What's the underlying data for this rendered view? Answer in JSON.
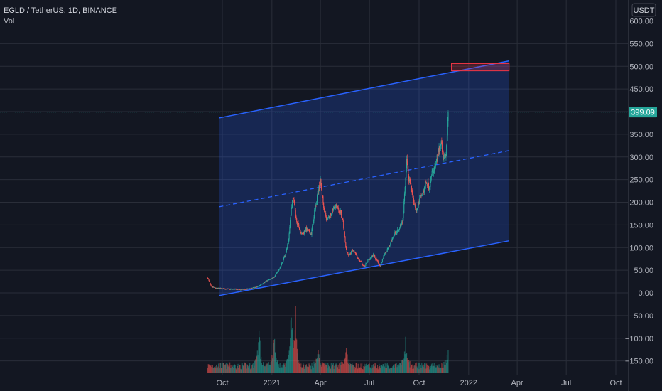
{
  "header": {
    "symbol": "EGLD / TetherUS, 1D, BINANCE",
    "indicator": "Vol"
  },
  "currency_button": "USDT",
  "colors": {
    "background": "#131722",
    "grid": "#2a2e39",
    "up": "#26a69a",
    "down": "#ef5350",
    "channel_line": "#2962ff",
    "channel_fill": "#2962ff",
    "current_price": "#26a69a",
    "target_box": "#f23645"
  },
  "current_price_label": "399.09",
  "chart_data": {
    "type": "candlestick",
    "title": "EGLD / TetherUS, 1D, BINANCE",
    "y_axis": {
      "ticks": [
        "600.00",
        "550.00",
        "500.00",
        "450.00",
        "400.00",
        "350.00",
        "300.00",
        "250.00",
        "200.00",
        "150.00",
        "100.00",
        "50.00",
        "0.00",
        "−50.00",
        "−100.00",
        "−150.00"
      ],
      "values": [
        600,
        550,
        500,
        450,
        400,
        350,
        300,
        250,
        200,
        150,
        100,
        50,
        0,
        -50,
        -100,
        -150
      ],
      "range": [
        -175,
        630
      ]
    },
    "x_axis": {
      "ticks": [
        "Oct",
        "2021",
        "Apr",
        "Jul",
        "Oct",
        "2022",
        "Apr",
        "Jul",
        "Oct"
      ],
      "dates": [
        "2020-10-01",
        "2021-01-01",
        "2021-04-01",
        "2021-07-01",
        "2021-10-01",
        "2022-01-01",
        "2022-04-01",
        "2022-07-01",
        "2022-10-01"
      ]
    },
    "price_path": [
      [
        "2020-09-04",
        33
      ],
      [
        "2020-09-10",
        14
      ],
      [
        "2020-09-20",
        10
      ],
      [
        "2020-10-05",
        9
      ],
      [
        "2020-10-20",
        8
      ],
      [
        "2020-11-05",
        7
      ],
      [
        "2020-11-20",
        9
      ],
      [
        "2020-12-05",
        13
      ],
      [
        "2020-12-15",
        21
      ],
      [
        "2020-12-25",
        28
      ],
      [
        "2021-01-05",
        35
      ],
      [
        "2021-01-15",
        52
      ],
      [
        "2021-01-25",
        82
      ],
      [
        "2021-02-01",
        120
      ],
      [
        "2021-02-06",
        190
      ],
      [
        "2021-02-10",
        212
      ],
      [
        "2021-02-15",
        160
      ],
      [
        "2021-02-20",
        145
      ],
      [
        "2021-02-25",
        128
      ],
      [
        "2021-03-05",
        140
      ],
      [
        "2021-03-15",
        130
      ],
      [
        "2021-03-20",
        172
      ],
      [
        "2021-03-28",
        228
      ],
      [
        "2021-04-01",
        244
      ],
      [
        "2021-04-06",
        200
      ],
      [
        "2021-04-12",
        158
      ],
      [
        "2021-04-20",
        172
      ],
      [
        "2021-04-28",
        193
      ],
      [
        "2021-05-08",
        178
      ],
      [
        "2021-05-13",
        155
      ],
      [
        "2021-05-18",
        100
      ],
      [
        "2021-05-23",
        82
      ],
      [
        "2021-06-01",
        97
      ],
      [
        "2021-06-10",
        74
      ],
      [
        "2021-06-22",
        58
      ],
      [
        "2021-06-28",
        72
      ],
      [
        "2021-07-08",
        84
      ],
      [
        "2021-07-15",
        70
      ],
      [
        "2021-07-21",
        60
      ],
      [
        "2021-07-28",
        84
      ],
      [
        "2021-08-05",
        98
      ],
      [
        "2021-08-15",
        128
      ],
      [
        "2021-08-25",
        143
      ],
      [
        "2021-09-01",
        162
      ],
      [
        "2021-09-05",
        232
      ],
      [
        "2021-09-08",
        290
      ],
      [
        "2021-09-12",
        250
      ],
      [
        "2021-09-20",
        210
      ],
      [
        "2021-09-26",
        180
      ],
      [
        "2021-10-02",
        206
      ],
      [
        "2021-10-08",
        220
      ],
      [
        "2021-10-15",
        243
      ],
      [
        "2021-10-20",
        232
      ],
      [
        "2021-10-25",
        265
      ],
      [
        "2021-11-01",
        282
      ],
      [
        "2021-11-06",
        312
      ],
      [
        "2021-11-10",
        335
      ],
      [
        "2021-11-15",
        304
      ],
      [
        "2021-11-19",
        295
      ],
      [
        "2021-11-22",
        340
      ],
      [
        "2021-11-24",
        399
      ]
    ],
    "current_price": 399.09,
    "channel": {
      "upper": [
        [
          "2020-09-25",
          386
        ],
        [
          "2022-03-17",
          512
        ]
      ],
      "middle": [
        [
          "2020-09-25",
          190
        ],
        [
          "2022-03-17",
          314
        ]
      ],
      "lower": [
        [
          "2020-09-25",
          -6
        ],
        [
          "2022-03-17",
          115
        ]
      ]
    },
    "target_zone": {
      "x": [
        "2021-11-30",
        "2022-03-17"
      ],
      "y": [
        490,
        506
      ]
    },
    "volume_series": "Vol",
    "grid": true,
    "legend": "top-left"
  }
}
